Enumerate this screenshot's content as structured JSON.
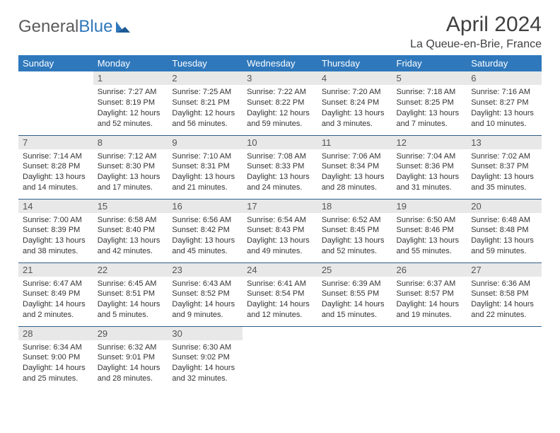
{
  "logo": {
    "text1": "General",
    "text2": "Blue"
  },
  "title": "April 2024",
  "location": "La Queue-en-Brie, France",
  "colors": {
    "header_bg": "#2f78bc",
    "header_text": "#ffffff",
    "daynum_bg": "#e8e8e8",
    "row_border": "#2f5f8a",
    "logo_gray": "#5b5b5b",
    "logo_blue": "#2f78bc"
  },
  "weekdays": [
    "Sunday",
    "Monday",
    "Tuesday",
    "Wednesday",
    "Thursday",
    "Friday",
    "Saturday"
  ],
  "weeks": [
    [
      null,
      {
        "n": "1",
        "sr": "Sunrise: 7:27 AM",
        "ss": "Sunset: 8:19 PM",
        "dl1": "Daylight: 12 hours",
        "dl2": "and 52 minutes."
      },
      {
        "n": "2",
        "sr": "Sunrise: 7:25 AM",
        "ss": "Sunset: 8:21 PM",
        "dl1": "Daylight: 12 hours",
        "dl2": "and 56 minutes."
      },
      {
        "n": "3",
        "sr": "Sunrise: 7:22 AM",
        "ss": "Sunset: 8:22 PM",
        "dl1": "Daylight: 12 hours",
        "dl2": "and 59 minutes."
      },
      {
        "n": "4",
        "sr": "Sunrise: 7:20 AM",
        "ss": "Sunset: 8:24 PM",
        "dl1": "Daylight: 13 hours",
        "dl2": "and 3 minutes."
      },
      {
        "n": "5",
        "sr": "Sunrise: 7:18 AM",
        "ss": "Sunset: 8:25 PM",
        "dl1": "Daylight: 13 hours",
        "dl2": "and 7 minutes."
      },
      {
        "n": "6",
        "sr": "Sunrise: 7:16 AM",
        "ss": "Sunset: 8:27 PM",
        "dl1": "Daylight: 13 hours",
        "dl2": "and 10 minutes."
      }
    ],
    [
      {
        "n": "7",
        "sr": "Sunrise: 7:14 AM",
        "ss": "Sunset: 8:28 PM",
        "dl1": "Daylight: 13 hours",
        "dl2": "and 14 minutes."
      },
      {
        "n": "8",
        "sr": "Sunrise: 7:12 AM",
        "ss": "Sunset: 8:30 PM",
        "dl1": "Daylight: 13 hours",
        "dl2": "and 17 minutes."
      },
      {
        "n": "9",
        "sr": "Sunrise: 7:10 AM",
        "ss": "Sunset: 8:31 PM",
        "dl1": "Daylight: 13 hours",
        "dl2": "and 21 minutes."
      },
      {
        "n": "10",
        "sr": "Sunrise: 7:08 AM",
        "ss": "Sunset: 8:33 PM",
        "dl1": "Daylight: 13 hours",
        "dl2": "and 24 minutes."
      },
      {
        "n": "11",
        "sr": "Sunrise: 7:06 AM",
        "ss": "Sunset: 8:34 PM",
        "dl1": "Daylight: 13 hours",
        "dl2": "and 28 minutes."
      },
      {
        "n": "12",
        "sr": "Sunrise: 7:04 AM",
        "ss": "Sunset: 8:36 PM",
        "dl1": "Daylight: 13 hours",
        "dl2": "and 31 minutes."
      },
      {
        "n": "13",
        "sr": "Sunrise: 7:02 AM",
        "ss": "Sunset: 8:37 PM",
        "dl1": "Daylight: 13 hours",
        "dl2": "and 35 minutes."
      }
    ],
    [
      {
        "n": "14",
        "sr": "Sunrise: 7:00 AM",
        "ss": "Sunset: 8:39 PM",
        "dl1": "Daylight: 13 hours",
        "dl2": "and 38 minutes."
      },
      {
        "n": "15",
        "sr": "Sunrise: 6:58 AM",
        "ss": "Sunset: 8:40 PM",
        "dl1": "Daylight: 13 hours",
        "dl2": "and 42 minutes."
      },
      {
        "n": "16",
        "sr": "Sunrise: 6:56 AM",
        "ss": "Sunset: 8:42 PM",
        "dl1": "Daylight: 13 hours",
        "dl2": "and 45 minutes."
      },
      {
        "n": "17",
        "sr": "Sunrise: 6:54 AM",
        "ss": "Sunset: 8:43 PM",
        "dl1": "Daylight: 13 hours",
        "dl2": "and 49 minutes."
      },
      {
        "n": "18",
        "sr": "Sunrise: 6:52 AM",
        "ss": "Sunset: 8:45 PM",
        "dl1": "Daylight: 13 hours",
        "dl2": "and 52 minutes."
      },
      {
        "n": "19",
        "sr": "Sunrise: 6:50 AM",
        "ss": "Sunset: 8:46 PM",
        "dl1": "Daylight: 13 hours",
        "dl2": "and 55 minutes."
      },
      {
        "n": "20",
        "sr": "Sunrise: 6:48 AM",
        "ss": "Sunset: 8:48 PM",
        "dl1": "Daylight: 13 hours",
        "dl2": "and 59 minutes."
      }
    ],
    [
      {
        "n": "21",
        "sr": "Sunrise: 6:47 AM",
        "ss": "Sunset: 8:49 PM",
        "dl1": "Daylight: 14 hours",
        "dl2": "and 2 minutes."
      },
      {
        "n": "22",
        "sr": "Sunrise: 6:45 AM",
        "ss": "Sunset: 8:51 PM",
        "dl1": "Daylight: 14 hours",
        "dl2": "and 5 minutes."
      },
      {
        "n": "23",
        "sr": "Sunrise: 6:43 AM",
        "ss": "Sunset: 8:52 PM",
        "dl1": "Daylight: 14 hours",
        "dl2": "and 9 minutes."
      },
      {
        "n": "24",
        "sr": "Sunrise: 6:41 AM",
        "ss": "Sunset: 8:54 PM",
        "dl1": "Daylight: 14 hours",
        "dl2": "and 12 minutes."
      },
      {
        "n": "25",
        "sr": "Sunrise: 6:39 AM",
        "ss": "Sunset: 8:55 PM",
        "dl1": "Daylight: 14 hours",
        "dl2": "and 15 minutes."
      },
      {
        "n": "26",
        "sr": "Sunrise: 6:37 AM",
        "ss": "Sunset: 8:57 PM",
        "dl1": "Daylight: 14 hours",
        "dl2": "and 19 minutes."
      },
      {
        "n": "27",
        "sr": "Sunrise: 6:36 AM",
        "ss": "Sunset: 8:58 PM",
        "dl1": "Daylight: 14 hours",
        "dl2": "and 22 minutes."
      }
    ],
    [
      {
        "n": "28",
        "sr": "Sunrise: 6:34 AM",
        "ss": "Sunset: 9:00 PM",
        "dl1": "Daylight: 14 hours",
        "dl2": "and 25 minutes."
      },
      {
        "n": "29",
        "sr": "Sunrise: 6:32 AM",
        "ss": "Sunset: 9:01 PM",
        "dl1": "Daylight: 14 hours",
        "dl2": "and 28 minutes."
      },
      {
        "n": "30",
        "sr": "Sunrise: 6:30 AM",
        "ss": "Sunset: 9:02 PM",
        "dl1": "Daylight: 14 hours",
        "dl2": "and 32 minutes."
      },
      null,
      null,
      null,
      null
    ]
  ]
}
